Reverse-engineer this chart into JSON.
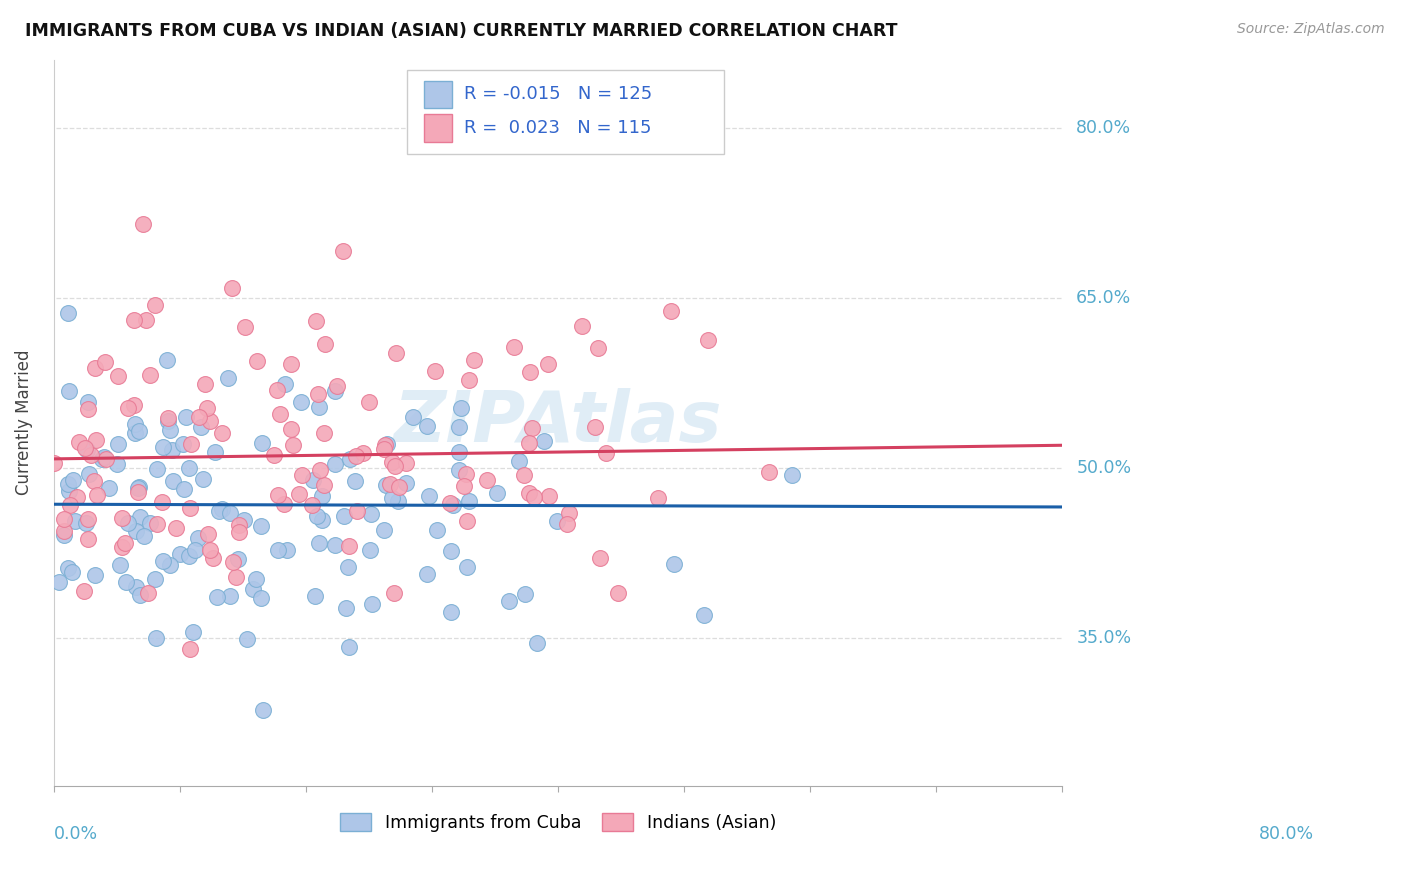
{
  "title": "IMMIGRANTS FROM CUBA VS INDIAN (ASIAN) CURRENTLY MARRIED CORRELATION CHART",
  "source": "Source: ZipAtlas.com",
  "ylabel": "Currently Married",
  "ytick_labels": [
    "35.0%",
    "50.0%",
    "65.0%",
    "80.0%"
  ],
  "ytick_values": [
    0.35,
    0.5,
    0.65,
    0.8
  ],
  "xlim": [
    0.0,
    0.8
  ],
  "ylim": [
    0.22,
    0.86
  ],
  "series1_color": "#aec6e8",
  "series2_color": "#f4a8b8",
  "series1_edge": "#7bafd4",
  "series2_edge": "#e87a95",
  "line1_color": "#1a5fa8",
  "line2_color": "#d44060",
  "legend_text_color": "#3366cc",
  "legend_label1": "Immigrants from Cuba",
  "legend_label2": "Indians (Asian)",
  "background_color": "#ffffff",
  "grid_color": "#dddddd",
  "right_label_color": "#55aacc",
  "watermark_color": "#c8dff0"
}
